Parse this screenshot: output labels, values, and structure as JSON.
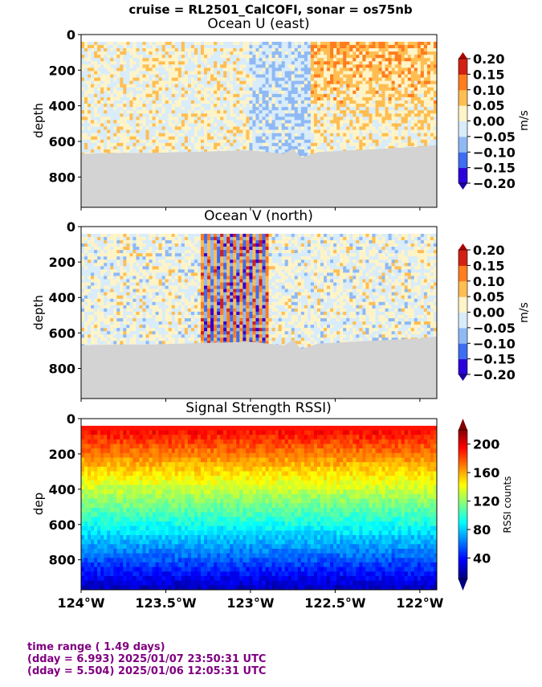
{
  "suptitle": "cruise = RL2501_CalCOFI,  sonar = os75nb",
  "footer": {
    "line1": "time range ( 1.49 days)",
    "line2": "(dday = 6.993) 2025/01/07 23:50:31 UTC",
    "line3": "(dday = 5.504) 2025/01/06 12:05:31 UTC"
  },
  "chart_data": [
    {
      "type": "heatmap",
      "title": "Ocean U (east)",
      "ylabel": "depth",
      "xlabel": "",
      "xlim": [
        -124.0,
        -121.9
      ],
      "ylim": [
        970,
        0
      ],
      "yticks": [
        0,
        200,
        400,
        600,
        800
      ],
      "ytick_labels": [
        "0",
        "200",
        "400",
        "600",
        "800"
      ],
      "xtick_positions": [
        -124.0,
        -123.5,
        -123.0,
        -122.5,
        -122.0
      ],
      "colorbar": {
        "label": "m/s",
        "range": [
          -0.2,
          0.2
        ],
        "ticks": [
          0.2,
          0.15,
          0.1,
          0.05,
          0.0,
          -0.05,
          -0.1,
          -0.15,
          -0.2
        ],
        "tick_labels": [
          "0.20",
          "0.15",
          "0.10",
          "0.05",
          "0.00",
          "−0.05",
          "−0.10",
          "−0.15",
          "−0.20"
        ],
        "colormap": "diverging blue-white-red",
        "extend": "both"
      },
      "bottom_profile": {
        "lon": [
          -124.0,
          -123.8,
          -123.6,
          -123.4,
          -123.2,
          -123.0,
          -122.9,
          -122.8,
          -122.75,
          -122.7,
          -122.6,
          -122.4,
          -122.2,
          -122.0,
          -121.9
        ],
        "depth": [
          670,
          665,
          665,
          660,
          655,
          650,
          660,
          670,
          640,
          690,
          660,
          650,
          640,
          630,
          620
        ]
      },
      "no_data_color": "#d3d3d3"
    },
    {
      "type": "heatmap",
      "title": "Ocean V (north)",
      "ylabel": "depth",
      "xlabel": "",
      "xlim": [
        -124.0,
        -121.9
      ],
      "ylim": [
        970,
        0
      ],
      "yticks": [
        0,
        200,
        400,
        600,
        800
      ],
      "ytick_labels": [
        "0",
        "200",
        "400",
        "600",
        "800"
      ],
      "xtick_positions": [
        -124.0,
        -123.5,
        -123.0,
        -122.5,
        -122.0
      ],
      "colorbar": {
        "label": "m/s",
        "range": [
          -0.2,
          0.2
        ],
        "ticks": [
          0.2,
          0.15,
          0.1,
          0.05,
          0.0,
          -0.05,
          -0.1,
          -0.15,
          -0.2
        ],
        "tick_labels": [
          "0.20",
          "0.15",
          "0.10",
          "0.05",
          "0.00",
          "−0.05",
          "−0.10",
          "−0.15",
          "−0.20"
        ],
        "colormap": "diverging blue-white-red",
        "extend": "both"
      },
      "bottom_profile": {
        "lon": [
          -124.0,
          -123.8,
          -123.6,
          -123.4,
          -123.2,
          -123.0,
          -122.9,
          -122.8,
          -122.75,
          -122.7,
          -122.6,
          -122.4,
          -122.2,
          -122.0,
          -121.9
        ],
        "depth": [
          670,
          665,
          665,
          660,
          655,
          650,
          660,
          670,
          640,
          690,
          660,
          650,
          640,
          630,
          620
        ]
      },
      "no_data_color": "#d3d3d3"
    },
    {
      "type": "heatmap",
      "title": "Signal Strength RSSI)",
      "ylabel": "dep",
      "xlabel": "",
      "xlim": [
        -124.0,
        -121.9
      ],
      "ylim": [
        970,
        0
      ],
      "yticks": [
        0,
        200,
        400,
        600,
        800
      ],
      "ytick_labels": [
        "0",
        "200",
        "400",
        "600",
        "800"
      ],
      "xticks": [
        -124.0,
        -123.5,
        -123.0,
        -122.5,
        -122.0
      ],
      "xtick_labels": [
        "124°W",
        "123.5°W",
        "123°W",
        "122.5°W",
        "122°W"
      ],
      "colorbar": {
        "label": "RSSI counts",
        "range": [
          10,
          220
        ],
        "ticks": [
          200,
          160,
          120,
          80,
          40
        ],
        "tick_labels": [
          "200",
          "160",
          "120",
          "80",
          "40"
        ],
        "colormap": "jet",
        "extend": "both"
      }
    }
  ]
}
